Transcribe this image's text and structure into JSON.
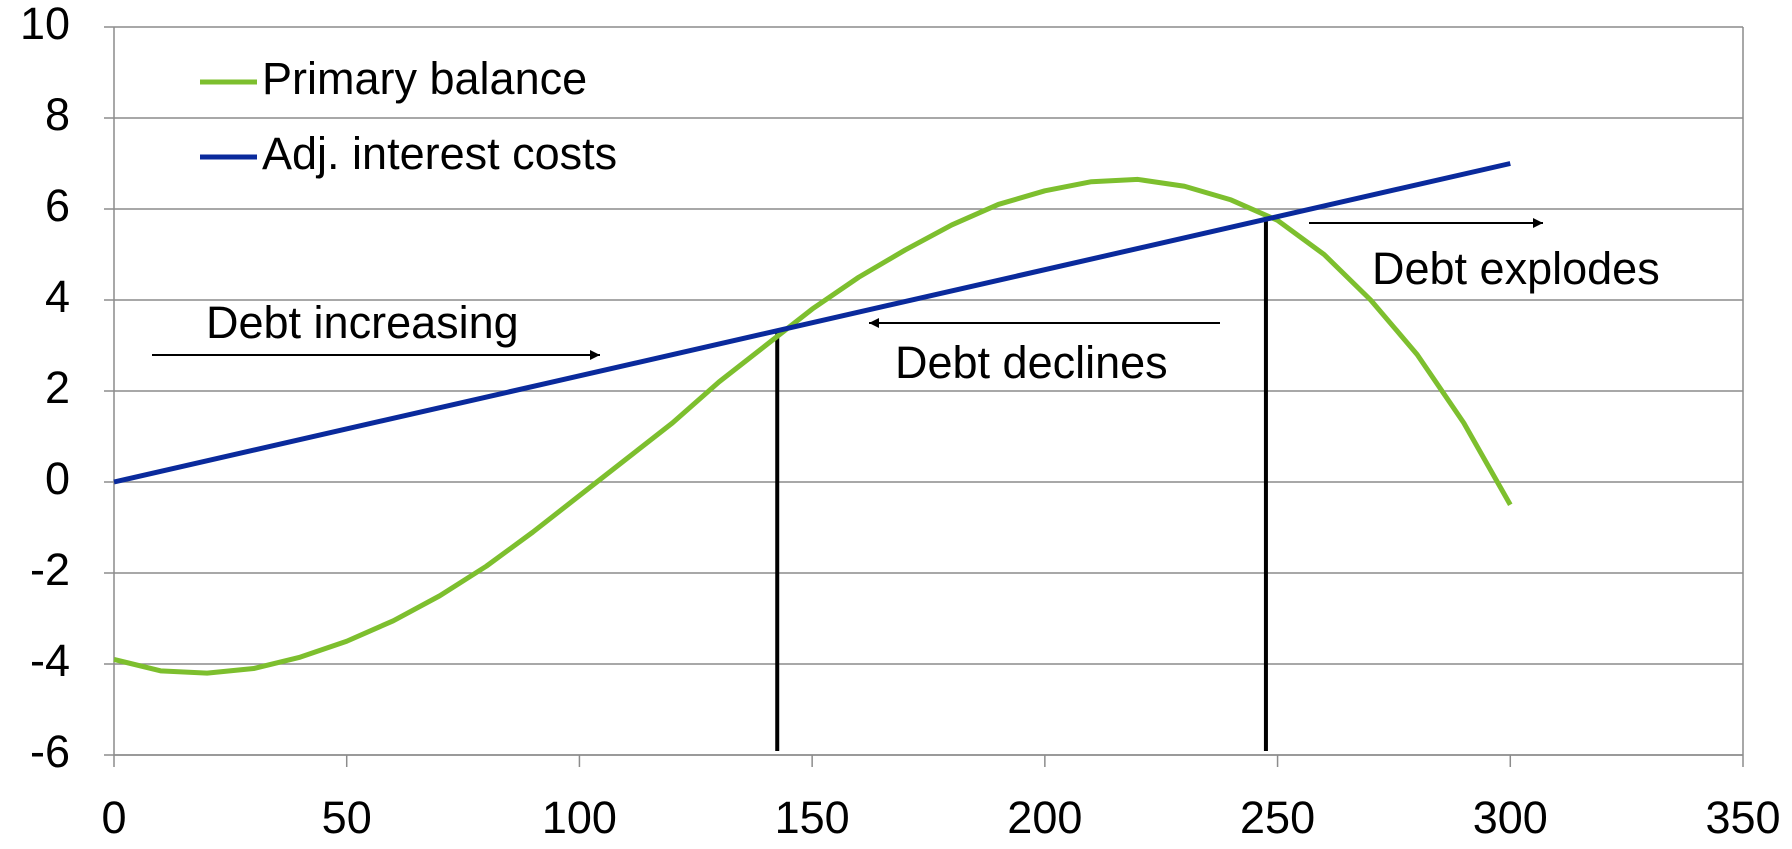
{
  "chart_data": {
    "type": "line",
    "series": [
      {
        "name": "Primary balance",
        "color": "#7dbf2e",
        "x": [
          0,
          10,
          20,
          30,
          40,
          50,
          60,
          70,
          80,
          90,
          100,
          110,
          120,
          130,
          140,
          150,
          160,
          170,
          180,
          190,
          200,
          210,
          220,
          230,
          240,
          250,
          260,
          270,
          280,
          290,
          300
        ],
        "values": [
          -3.9,
          -4.15,
          -4.2,
          -4.1,
          -3.85,
          -3.5,
          -3.05,
          -2.5,
          -1.85,
          -1.1,
          -0.3,
          0.5,
          1.3,
          2.2,
          3.0,
          3.8,
          4.5,
          5.1,
          5.65,
          6.1,
          6.4,
          6.6,
          6.65,
          6.5,
          6.2,
          5.75,
          5.0,
          4.0,
          2.8,
          1.3,
          -0.5
        ]
      },
      {
        "name": "Adj. interest costs",
        "color": "#0a2a9c",
        "x": [
          0,
          300
        ],
        "values": [
          0,
          7
        ]
      }
    ],
    "reference_lines": [
      {
        "x": 142.5,
        "y": 3.3
      },
      {
        "x": 247.5,
        "y": 5.8
      }
    ],
    "annotations": [
      "Debt increasing",
      "Debt declines",
      "Debt explodes"
    ],
    "xlim": [
      0,
      350
    ],
    "xticks": [
      0,
      50,
      100,
      150,
      200,
      250,
      300,
      350
    ],
    "ylim": [
      -6,
      10
    ],
    "yticks": [
      -6,
      -4,
      -2,
      0,
      2,
      4,
      6,
      8,
      10
    ],
    "grid": true,
    "legend": "upper left"
  }
}
